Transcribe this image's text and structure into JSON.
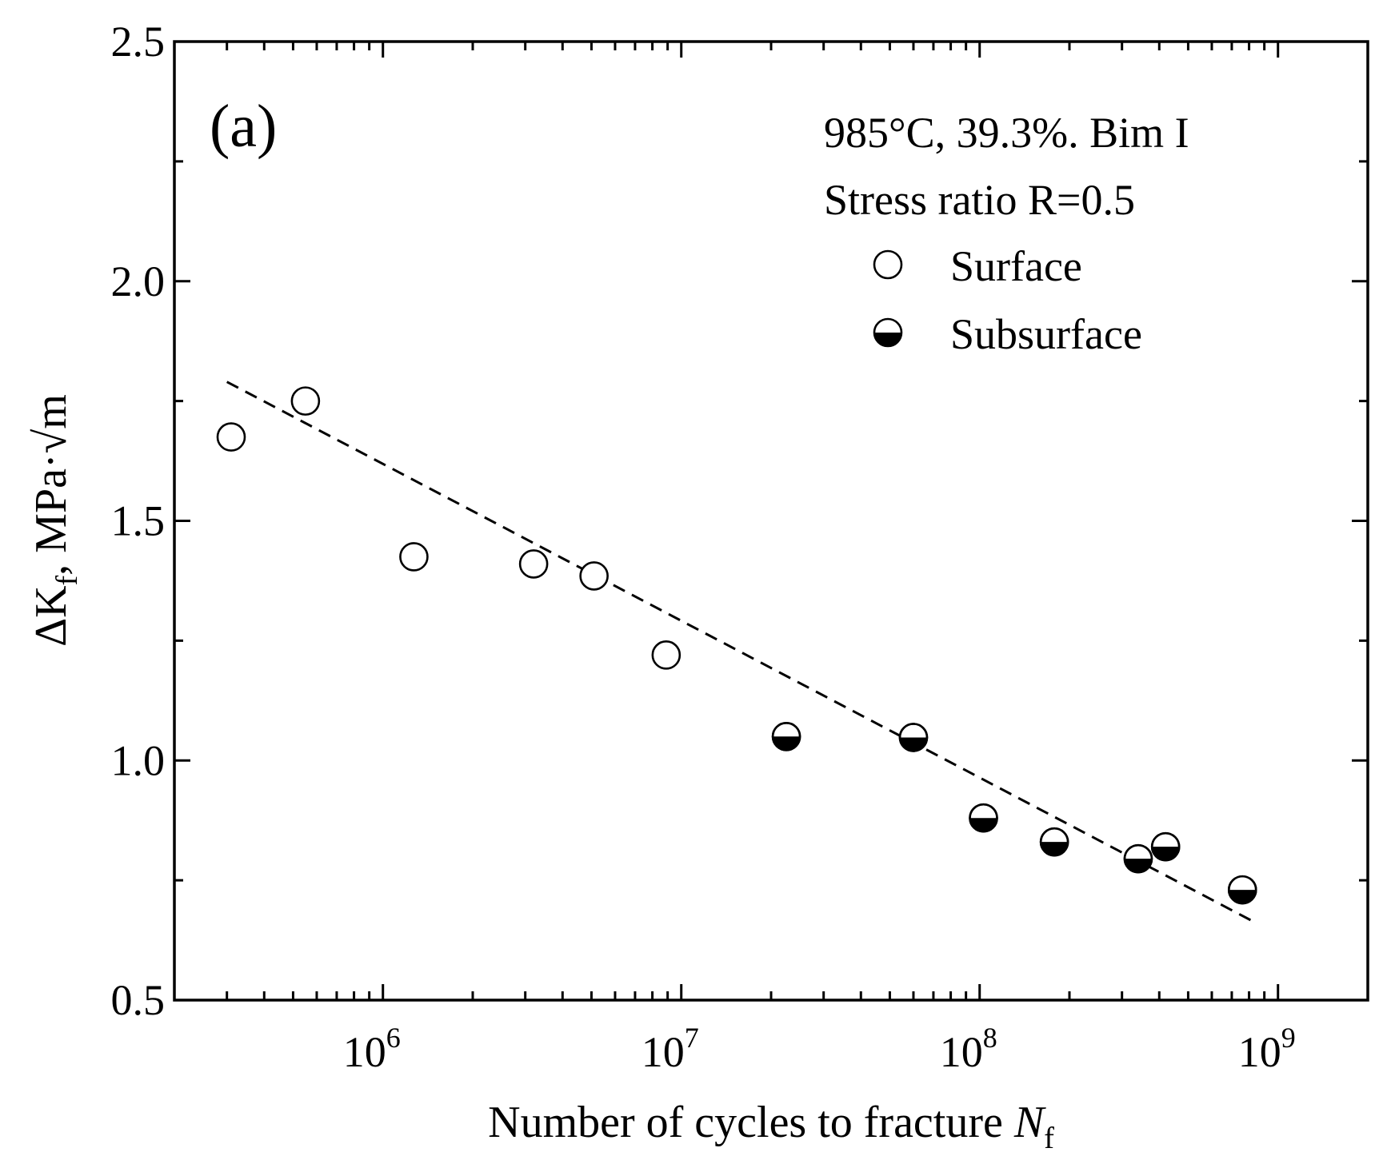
{
  "chart_data": {
    "type": "scatter",
    "panel_label": "(a)",
    "title_lines": [
      "985°C, 39.3%. Bim I",
      "Stress ratio R=0.5"
    ],
    "xlabel": "Number of cycles to fracture ",
    "xlabel_var": "N",
    "xlabel_sub": "f",
    "ylabel": "ΔK",
    "ylabel_sub": "f",
    "ylabel_unit": ", MPa·√m",
    "xscale": "log",
    "xlim": [
      200000,
      2000000000
    ],
    "ylim": [
      0.5,
      2.5
    ],
    "yticks": [
      {
        "value": 0.5,
        "label": "0.5"
      },
      {
        "value": 1.0,
        "label": "1.0"
      },
      {
        "value": 1.5,
        "label": "1.5"
      },
      {
        "value": 2.0,
        "label": "2.0"
      },
      {
        "value": 2.5,
        "label": "2.5"
      }
    ],
    "xticks": [
      {
        "value": 1000000,
        "base": "10",
        "exp": "6"
      },
      {
        "value": 10000000,
        "base": "10",
        "exp": "7"
      },
      {
        "value": 100000000,
        "base": "10",
        "exp": "8"
      },
      {
        "value": 1000000000,
        "base": "10",
        "exp": "9"
      }
    ],
    "legend_position": "top-right",
    "series": [
      {
        "name": "Surface",
        "marker": "open-circle",
        "points": [
          {
            "x": 310000,
            "y": 1.675
          },
          {
            "x": 550000,
            "y": 1.75
          },
          {
            "x": 1270000,
            "y": 1.425
          },
          {
            "x": 3200000,
            "y": 1.41
          },
          {
            "x": 5100000,
            "y": 1.385
          },
          {
            "x": 8900000,
            "y": 1.22
          }
        ]
      },
      {
        "name": "Subsurface",
        "marker": "half-filled-circle",
        "points": [
          {
            "x": 22500000,
            "y": 1.05
          },
          {
            "x": 60000000,
            "y": 1.048
          },
          {
            "x": 103000000,
            "y": 0.88
          },
          {
            "x": 178000000,
            "y": 0.83
          },
          {
            "x": 340000000,
            "y": 0.795
          },
          {
            "x": 420000000,
            "y": 0.82
          },
          {
            "x": 760000000,
            "y": 0.73
          }
        ]
      }
    ],
    "fit_line": {
      "style": "dashed",
      "x": [
        300000,
        850000000
      ],
      "y": [
        1.79,
        0.66
      ]
    }
  }
}
